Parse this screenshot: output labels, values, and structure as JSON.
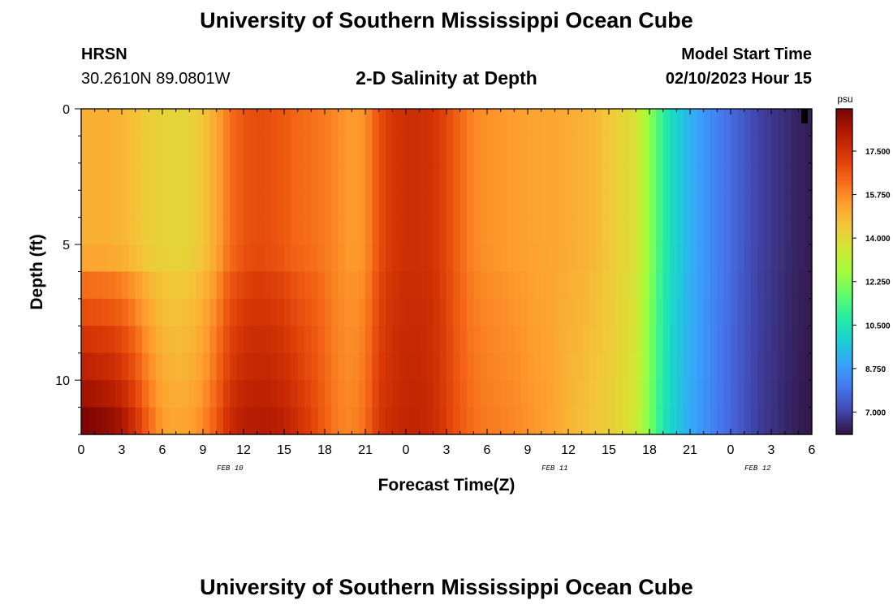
{
  "header": {
    "title": "University of Southern Mississippi Ocean Cube",
    "station": "HRSN",
    "coords": "30.2610N  89.0801W",
    "subtitle": "2-D Salinity at Depth",
    "model_start_label": "Model Start Time",
    "model_start_value": "02/10/2023 Hour 15"
  },
  "footer": {
    "title": "University of Southern Mississippi Ocean Cube"
  },
  "chart_data": {
    "type": "heatmap",
    "title": "2-D Salinity at Depth",
    "xlabel": "Forecast Time(Z)",
    "ylabel": "Depth (ft)",
    "colorbar_unit": "psu",
    "x_tick_labels": [
      "0",
      "3",
      "6",
      "9",
      "12",
      "15",
      "18",
      "21",
      "0",
      "3",
      "6",
      "9",
      "12",
      "15",
      "18",
      "21",
      "0",
      "3",
      "6"
    ],
    "x_range_hours": [
      0,
      54
    ],
    "date_labels": [
      {
        "text": "FEB 10",
        "hour": 11
      },
      {
        "text": "FEB 11",
        "hour": 35
      },
      {
        "text": "FEB 12",
        "hour": 50
      }
    ],
    "y_ticks": [
      0,
      5,
      10
    ],
    "y_range_ft": [
      0,
      12
    ],
    "colorbar_ticks": [
      "17.500",
      "15.750",
      "14.000",
      "12.250",
      "10.500",
      "8.750",
      "7.000"
    ],
    "colorbar_tick_values": [
      17.5,
      15.75,
      14.0,
      12.25,
      10.5,
      8.75,
      7.0
    ],
    "color_range": [
      6.1,
      19.2
    ],
    "color_stops": [
      "#30123b",
      "#4145ab",
      "#4675ed",
      "#39a2fc",
      "#1bcfd4",
      "#24eca6",
      "#61fc6c",
      "#a4fc3b",
      "#d1e834",
      "#f3c63a",
      "#fe9b2d",
      "#f36315",
      "#d93806",
      "#b11901",
      "#7a0402"
    ],
    "depth_rows_ft": [
      0.5,
      1.5,
      2.5,
      3.5,
      4.5,
      5.5,
      6.5,
      7.5,
      8.5,
      9.5,
      10.5,
      11.5
    ],
    "surface_profile": [
      [
        0,
        15.0
      ],
      [
        2,
        15.0
      ],
      [
        3,
        14.9
      ],
      [
        4,
        14.6
      ],
      [
        5,
        14.3
      ],
      [
        6,
        14.2
      ],
      [
        7,
        14.1
      ],
      [
        8,
        14.2
      ],
      [
        9,
        14.5
      ],
      [
        10,
        15.2
      ],
      [
        11,
        16.2
      ],
      [
        12,
        16.7
      ],
      [
        13,
        16.9
      ],
      [
        14,
        16.8
      ],
      [
        15,
        16.6
      ],
      [
        16,
        16.3
      ],
      [
        17,
        16.2
      ],
      [
        18,
        16.0
      ],
      [
        19,
        15.7
      ],
      [
        20,
        15.4
      ],
      [
        21,
        15.6
      ],
      [
        22,
        16.8
      ],
      [
        23,
        17.4
      ],
      [
        24,
        17.6
      ],
      [
        25,
        17.6
      ],
      [
        26,
        17.5
      ],
      [
        27,
        17.0
      ],
      [
        28,
        16.3
      ],
      [
        29,
        15.8
      ],
      [
        30,
        15.6
      ],
      [
        31,
        15.5
      ],
      [
        32,
        15.4
      ],
      [
        33,
        15.3
      ],
      [
        34,
        15.2
      ],
      [
        35,
        15.2
      ],
      [
        36,
        15.1
      ],
      [
        37,
        15.0
      ],
      [
        38,
        14.8
      ],
      [
        39,
        14.5
      ],
      [
        40,
        14.1
      ],
      [
        41,
        13.8
      ],
      [
        42,
        12.4
      ],
      [
        43,
        10.9
      ],
      [
        44,
        9.9
      ],
      [
        45,
        9.3
      ],
      [
        46,
        8.7
      ],
      [
        47,
        8.2
      ],
      [
        48,
        7.8
      ],
      [
        49,
        7.4
      ],
      [
        50,
        7.0
      ],
      [
        51,
        6.8
      ],
      [
        52,
        6.6
      ],
      [
        53,
        6.4
      ],
      [
        54,
        6.3
      ]
    ],
    "bottom_profile": [
      [
        0,
        19.2
      ],
      [
        2,
        18.8
      ],
      [
        3,
        18.4
      ],
      [
        4,
        17.5
      ],
      [
        5,
        16.3
      ],
      [
        6,
        15.4
      ],
      [
        7,
        15.2
      ],
      [
        8,
        15.3
      ],
      [
        9,
        15.7
      ],
      [
        10,
        16.6
      ],
      [
        11,
        17.7
      ],
      [
        12,
        18.1
      ],
      [
        13,
        18.2
      ],
      [
        14,
        18.2
      ],
      [
        15,
        18.0
      ],
      [
        16,
        17.6
      ],
      [
        17,
        17.1
      ],
      [
        18,
        16.5
      ],
      [
        19,
        15.9
      ],
      [
        20,
        15.8
      ],
      [
        21,
        16.2
      ],
      [
        22,
        17.4
      ],
      [
        23,
        17.7
      ],
      [
        24,
        17.9
      ],
      [
        25,
        17.9
      ],
      [
        26,
        17.7
      ],
      [
        27,
        17.2
      ],
      [
        28,
        16.6
      ],
      [
        29,
        16.2
      ],
      [
        30,
        16.0
      ],
      [
        31,
        15.9
      ],
      [
        32,
        15.8
      ],
      [
        33,
        15.6
      ],
      [
        34,
        15.4
      ],
      [
        35,
        15.2
      ],
      [
        36,
        14.9
      ],
      [
        37,
        14.7
      ],
      [
        38,
        14.5
      ],
      [
        39,
        14.3
      ],
      [
        40,
        14.0
      ],
      [
        41,
        13.5
      ],
      [
        42,
        12.1
      ],
      [
        43,
        10.6
      ],
      [
        44,
        9.7
      ],
      [
        45,
        9.1
      ],
      [
        46,
        8.6
      ],
      [
        47,
        8.1
      ],
      [
        48,
        7.7
      ],
      [
        49,
        7.3
      ],
      [
        50,
        6.9
      ],
      [
        51,
        6.7
      ],
      [
        52,
        6.5
      ],
      [
        53,
        6.3
      ],
      [
        54,
        6.2
      ]
    ],
    "bottom_influence_by_row": [
      0,
      0,
      0,
      0,
      0,
      0.05,
      0.3,
      0.45,
      0.6,
      0.72,
      0.85,
      1.0
    ]
  }
}
